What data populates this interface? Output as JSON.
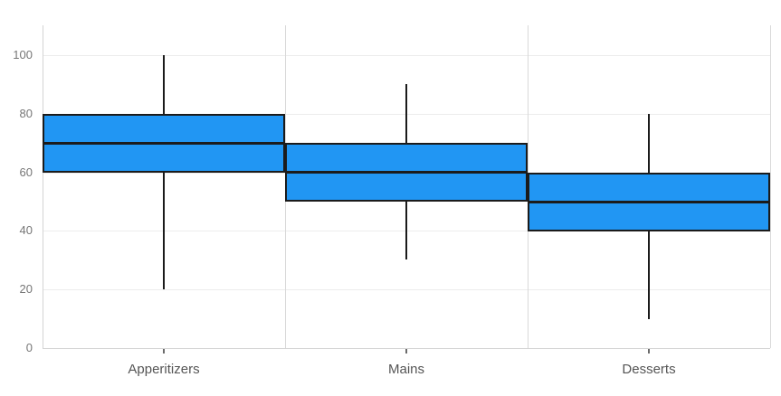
{
  "chart_data": {
    "type": "box",
    "title": "",
    "xlabel": "",
    "ylabel": "",
    "categories": [
      "Apperitizers",
      "Mains",
      "Desserts"
    ],
    "series": [
      {
        "name": "Apperitizers",
        "min": 20,
        "q1": 60,
        "median": 70,
        "q3": 80,
        "max": 100
      },
      {
        "name": "Mains",
        "min": 30,
        "q1": 50,
        "median": 60,
        "q3": 70,
        "max": 90
      },
      {
        "name": "Desserts",
        "min": 10,
        "q1": 40,
        "median": 50,
        "q3": 60,
        "max": 80
      }
    ],
    "yticks": [
      0,
      20,
      40,
      60,
      80,
      100
    ],
    "ylim": [
      0,
      110
    ],
    "grid": true,
    "legend": "none",
    "colors": {
      "box_fill": "#2196f3",
      "box_border": "#1b1b1b",
      "median_line": "#1b1b1b",
      "whisker": "#1b1b1b",
      "gridline_h": "#ececec",
      "gridline_v": "#d9d9d9",
      "axis_line": "#d4d4d4",
      "tick_mark": "#6b6b6b",
      "ytick_label": "#767676",
      "xtick_label": "#555555",
      "background": "#ffffff"
    }
  }
}
